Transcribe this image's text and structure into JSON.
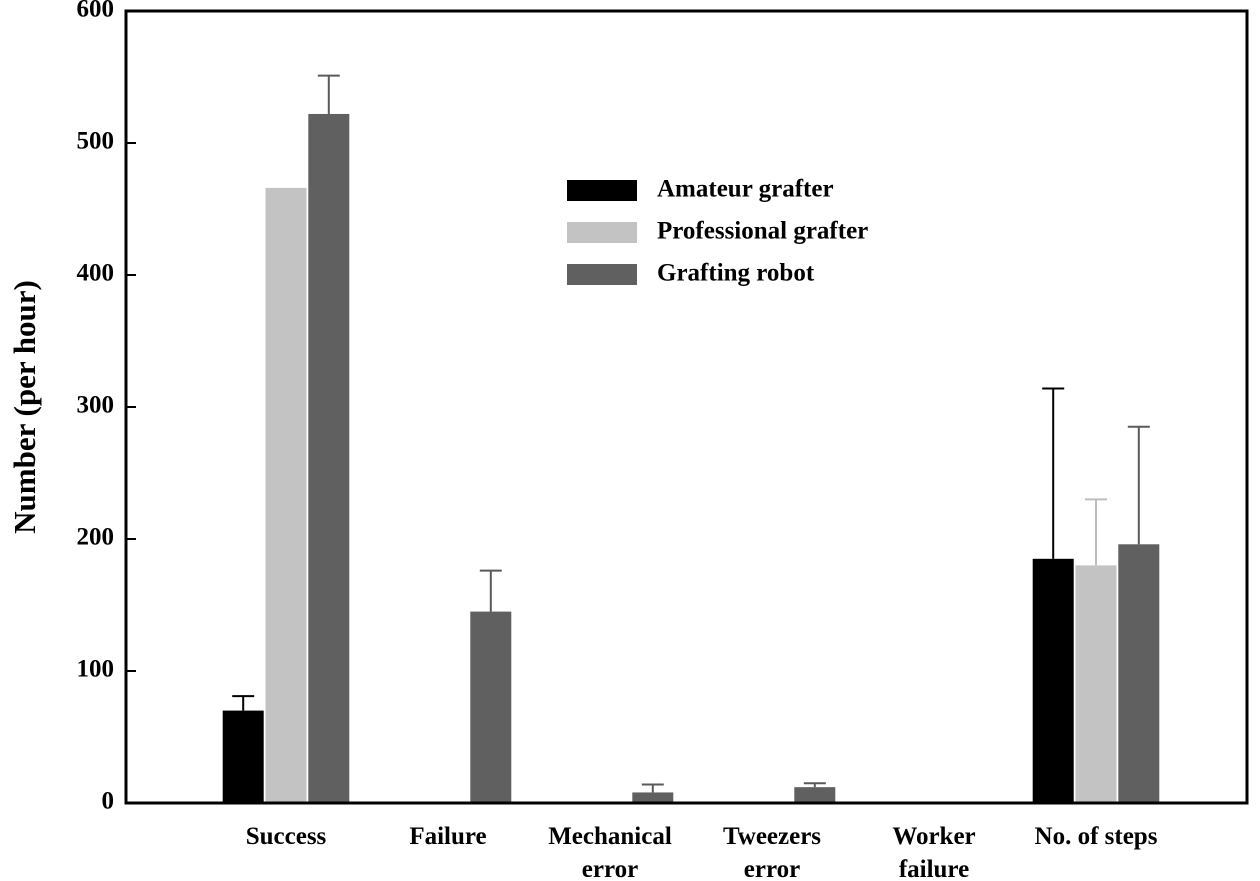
{
  "chart_data": {
    "type": "bar",
    "title": "",
    "xlabel": "",
    "ylabel": "Number (per hour)",
    "ylim": [
      0,
      600
    ],
    "yticks": [
      "0",
      "100",
      "200",
      "300",
      "400",
      "500",
      "600"
    ],
    "grid": false,
    "legend_position": "top-center",
    "categories": [
      [
        "Success"
      ],
      [
        "Failure"
      ],
      [
        "Mechanical",
        "error"
      ],
      [
        "Tweezers",
        "error"
      ],
      [
        "Worker",
        "failure"
      ],
      [
        "No. of steps"
      ]
    ],
    "series": [
      {
        "name": "Amateur grafter",
        "color": "#000000",
        "values": [
          70,
          0,
          0,
          0,
          0,
          185
        ],
        "errors": [
          11,
          0,
          0,
          0,
          0,
          129
        ]
      },
      {
        "name": "Professional grafter",
        "color": "#c3c3c3",
        "values": [
          466,
          0,
          0,
          0,
          0,
          180
        ],
        "errors": [
          0,
          0,
          0,
          0,
          0,
          50
        ]
      },
      {
        "name": "Grafting robot",
        "color": "#606060",
        "values": [
          522,
          145,
          8,
          12,
          1,
          196
        ],
        "errors": [
          29,
          31,
          6,
          3,
          0,
          89
        ]
      }
    ]
  }
}
